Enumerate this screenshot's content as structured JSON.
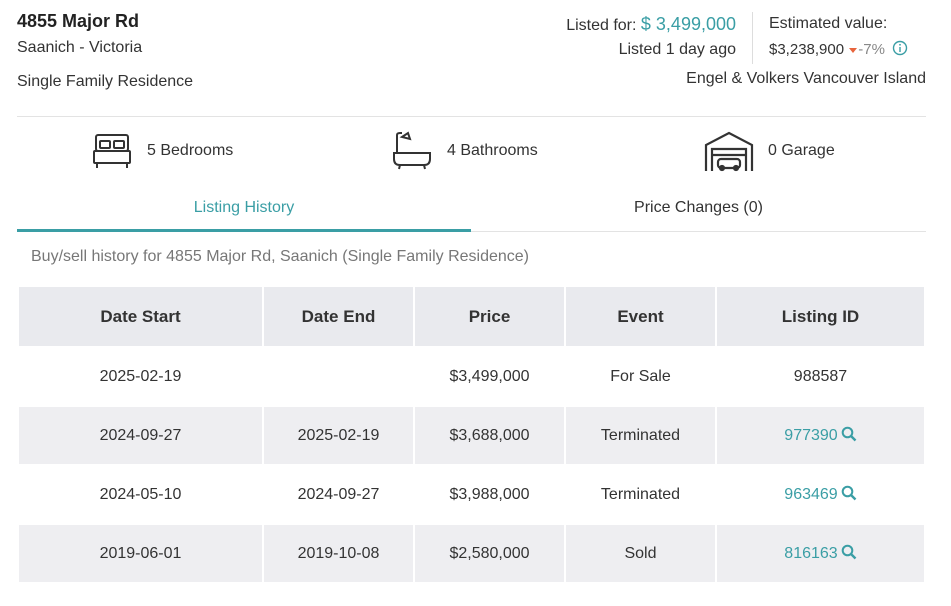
{
  "header": {
    "address": "4855 Major Rd",
    "area": "Saanich - Victoria",
    "property_type": "Single Family Residence",
    "listed_label": "Listed for:",
    "listed_price": "$ 3,499,000",
    "listed_ago": "Listed 1 day ago",
    "estimated_label": "Estimated value:",
    "estimated_value": "$3,238,900",
    "estimated_change": "-7%",
    "brokerage": "Engel & Volkers Vancouver Island"
  },
  "features": [
    "5 Bedrooms",
    "4 Bathrooms",
    "0 Garage"
  ],
  "tabs": [
    "Listing History",
    "Price Changes (0)"
  ],
  "history": {
    "caption": "Buy/sell history for 4855 Major Rd, Saanich (Single Family Residence)",
    "columns": [
      "Date Start",
      "Date End",
      "Price",
      "Event",
      "Listing ID"
    ],
    "rows": [
      [
        "2025-02-19",
        null,
        "$3,499,000",
        "For Sale",
        "988587"
      ],
      [
        "2024-09-27",
        "2025-02-19",
        "$3,688,000",
        "Terminated",
        "977390"
      ],
      [
        "2024-05-10",
        "2024-09-27",
        "$3,988,000",
        "Terminated",
        "963469"
      ],
      [
        "2019-06-01",
        "2019-10-08",
        "$2,580,000",
        "Sold",
        "816163"
      ]
    ]
  }
}
